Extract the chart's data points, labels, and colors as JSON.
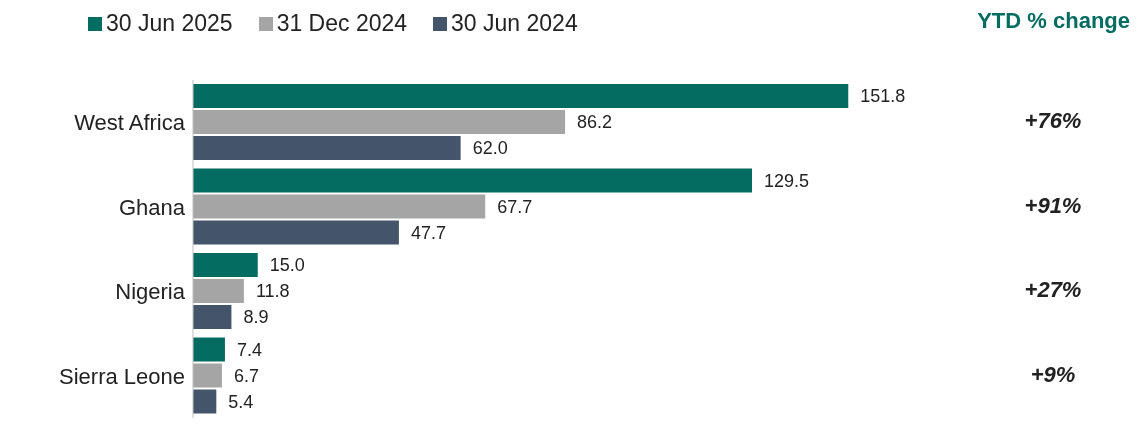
{
  "chart_data": {
    "type": "bar",
    "orientation": "horizontal",
    "categories": [
      "West Africa",
      "Ghana",
      "Nigeria",
      "Sierra Leone"
    ],
    "series": [
      {
        "name": "30 Jun 2025",
        "color": "#046c61",
        "values": [
          151.8,
          129.5,
          15.0,
          7.4
        ],
        "value_labels": [
          "151.8",
          "129.5",
          "15.0",
          "7.4"
        ]
      },
      {
        "name": "31 Dec 2024",
        "color": "#a5a5a5",
        "values": [
          86.2,
          67.7,
          11.8,
          6.7
        ],
        "value_labels": [
          "86.2",
          "67.7",
          "11.8",
          "6.7"
        ]
      },
      {
        "name": "30 Jun 2024",
        "color": "#44546a",
        "values": [
          62.0,
          47.7,
          8.9,
          5.4
        ],
        "value_labels": [
          "62.0",
          "47.7",
          "8.9",
          "5.4"
        ]
      }
    ],
    "legend": "top left",
    "annotations": [
      "YTD % change",
      "+76%",
      "+91%",
      "+27%",
      "+9%"
    ]
  }
}
